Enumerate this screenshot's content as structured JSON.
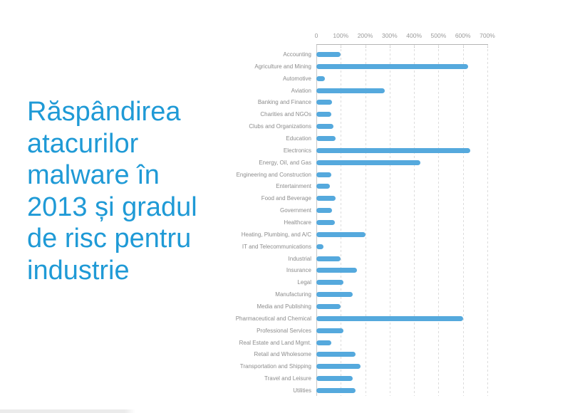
{
  "title": {
    "text": "Răspândirea\natacurilor\nmalware în\n2013 și gradul\nde risc pentru\nindustrie",
    "color": "#1f9ad6"
  },
  "colors": {
    "bar": "#55a9dd",
    "gridline": "#dcdcdc",
    "axis_line": "#b5b5b5",
    "category_label": "#8c8c8c",
    "tick_label": "#9a9a9a",
    "background": "#ffffff"
  },
  "chart_data": {
    "type": "bar",
    "orientation": "horizontal",
    "title": "",
    "xlabel": "",
    "ylabel": "",
    "x_unit": "%",
    "xlim": [
      0,
      700
    ],
    "x_ticks": [
      "0",
      "100%",
      "200%",
      "300%",
      "400%",
      "500%",
      "600%",
      "700%"
    ],
    "grid": true,
    "legend": false,
    "categories": [
      "Accounting",
      "Agriculture and Mining",
      "Automotive",
      "Aviation",
      "Banking and Finance",
      "Charities and NGOs",
      "Clubs and Organizations",
      "Education",
      "Electronics",
      "Energy, Oil, and Gas",
      "Engineering and Construction",
      "Entertainment",
      "Food and Beverage",
      "Government",
      "Healthcare",
      "Heating, Plumbing, and A/C",
      "IT and Telecommunications",
      "Industrial",
      "Insurance",
      "Legal",
      "Manufacturing",
      "Media and Publishing",
      "Pharmaceutical and Chemical",
      "Professional Services",
      "Real Estate and Land Mgmt.",
      "Retail and Wholesome",
      "Transportation and Shipping",
      "Travel and Leisure",
      "Utilities"
    ],
    "values": [
      100,
      620,
      35,
      280,
      65,
      60,
      70,
      80,
      630,
      425,
      60,
      55,
      80,
      65,
      75,
      200,
      30,
      100,
      165,
      110,
      150,
      100,
      600,
      110,
      60,
      160,
      180,
      150,
      160
    ]
  }
}
